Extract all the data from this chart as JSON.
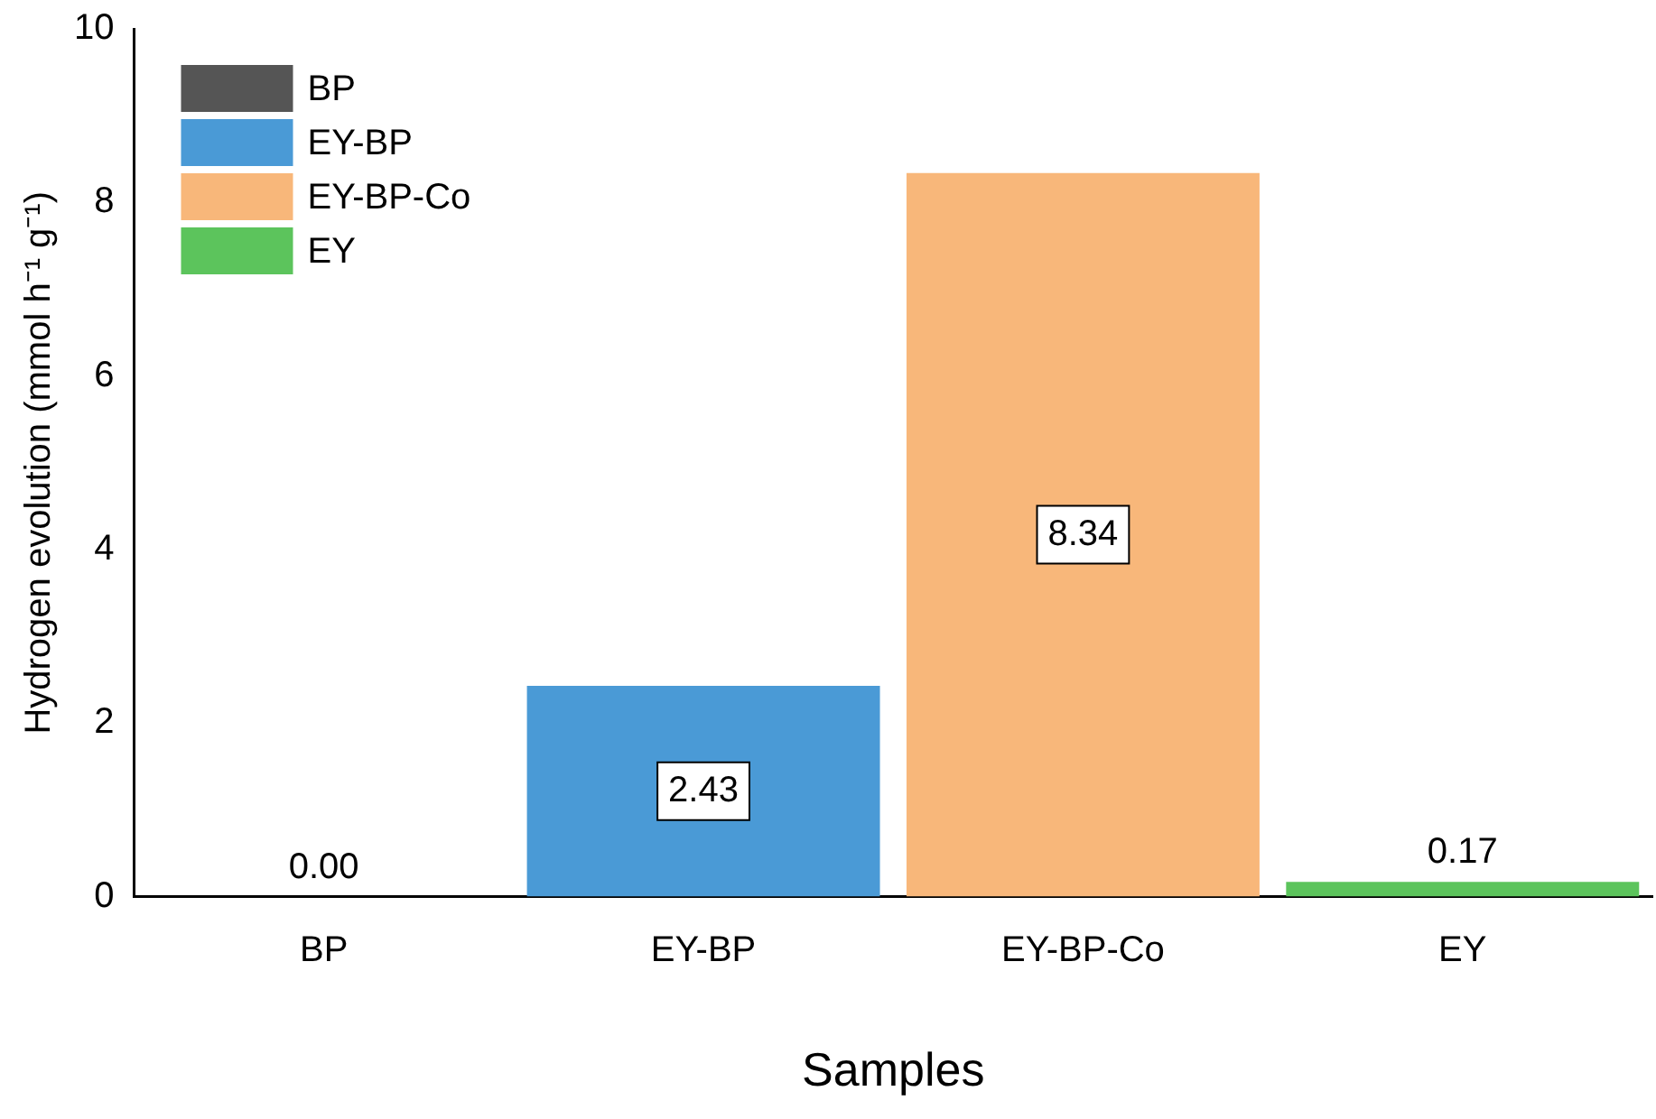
{
  "chart_data": {
    "type": "bar",
    "xlabel": "Samples",
    "ylabel": "Hydrogen evolution (mmol h⁻¹ g⁻¹)",
    "categories": [
      "BP",
      "EY-BP",
      "EY-BP-Co",
      "EY"
    ],
    "series": [
      {
        "name": "BP",
        "color": "#555555",
        "values": [
          0,
          null,
          null,
          null
        ],
        "value_labels": [
          "0.00",
          null,
          null,
          null
        ]
      },
      {
        "name": "EY-BP",
        "color": "#4a9ad6",
        "values": [
          null,
          2.43,
          null,
          null
        ],
        "value_labels": [
          null,
          "2.43",
          null,
          null
        ]
      },
      {
        "name": "EY-BP-Co",
        "color": "#f8b77a",
        "values": [
          null,
          null,
          8.34,
          null
        ],
        "value_labels": [
          null,
          null,
          "8.34",
          null
        ]
      },
      {
        "name": "EY",
        "color": "#5cc45c",
        "values": [
          null,
          null,
          null,
          0.17
        ],
        "value_labels": [
          null,
          null,
          null,
          "0.17"
        ]
      }
    ],
    "ylim": [
      0,
      10
    ],
    "yticks": [
      0,
      2,
      4,
      6,
      8,
      10
    ],
    "grid": false,
    "legend": "top left"
  }
}
